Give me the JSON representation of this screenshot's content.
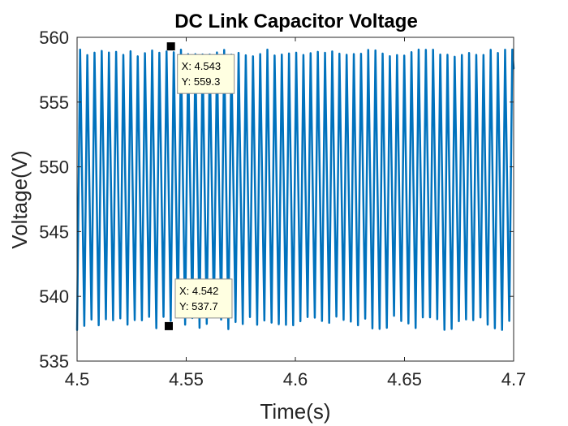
{
  "chart_data": {
    "type": "line",
    "title": "DC Link Capacitor Voltage",
    "xlabel": "Time(s)",
    "ylabel": "Voltage(V)",
    "xlim": [
      4.5,
      4.7
    ],
    "ylim": [
      535,
      560
    ],
    "x_ticks": [
      "4.5",
      "4.55",
      "4.6",
      "4.65",
      "4.7"
    ],
    "x_tick_values": [
      4.5,
      4.55,
      4.6,
      4.65,
      4.7
    ],
    "y_ticks": [
      "535",
      "540",
      "545",
      "550",
      "555",
      "560"
    ],
    "y_tick_values": [
      535,
      540,
      545,
      550,
      555,
      560
    ],
    "grid": false,
    "series": [
      {
        "color": "#0072BD",
        "waveform": "sawtooth-like ripple",
        "period_s": 0.0033,
        "approx_max": 559,
        "approx_min": 537.7,
        "x_start": 4.5,
        "x_end": 4.7
      }
    ],
    "annotations": [
      {
        "x": 4.543,
        "y": 559.3,
        "line1": "X: 4.543",
        "line2": "Y: 559.3"
      },
      {
        "x": 4.542,
        "y": 537.7,
        "line1": "X: 4.542",
        "line2": "Y: 537.7"
      }
    ]
  },
  "colors": {
    "series": "#0072BD",
    "axis": "#262626",
    "tooltip_bg": "#FFFFE1"
  }
}
